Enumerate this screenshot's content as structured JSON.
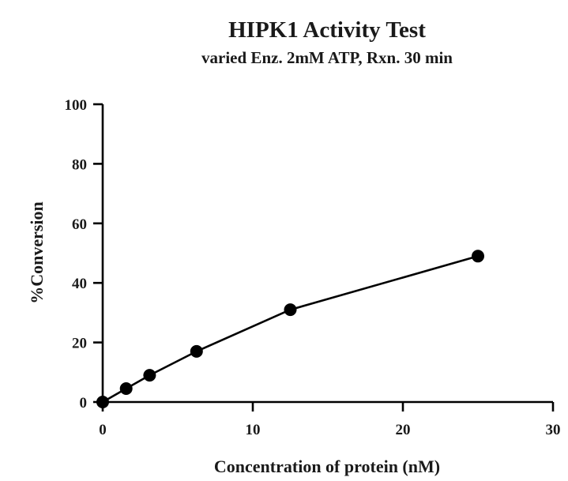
{
  "chart_data": {
    "type": "line",
    "title": "HIPK1 Activity Test",
    "subtitle": "varied Enz. 2mM ATP, Rxn. 30 min",
    "xlabel": "Concentration of protein (nM)",
    "ylabel": "%Conversion",
    "xlim": [
      0,
      30
    ],
    "ylim": [
      0,
      100
    ],
    "x_ticks": [
      0,
      10,
      20,
      30
    ],
    "y_ticks": [
      0,
      20,
      40,
      60,
      80,
      100
    ],
    "grid": false,
    "legend": "none",
    "series": [
      {
        "x": [
          0,
          1.5625,
          3.125,
          6.25,
          12.5,
          25
        ],
        "y": [
          0,
          4.5,
          9,
          17,
          31,
          49
        ]
      }
    ],
    "colors": {
      "line": "#000000",
      "marker": "#000000",
      "text": "#1a1a1a"
    }
  }
}
